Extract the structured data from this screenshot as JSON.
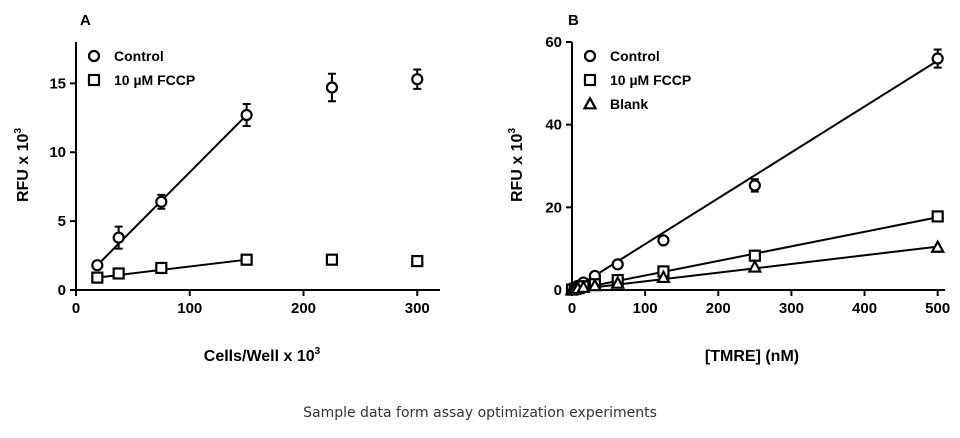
{
  "caption": "Sample data form assay optimization experiments",
  "chart_data": [
    {
      "panel": "A",
      "type": "scatter",
      "xlabel": "Cells/Well x 10",
      "xlabel_sup": "3",
      "ylabel": "RFU x 10",
      "ylabel_sup": "3",
      "xlim": [
        0,
        320
      ],
      "ylim": [
        0,
        18
      ],
      "xticks": [
        0,
        100,
        200,
        300
      ],
      "yticks": [
        0,
        5,
        10,
        15
      ],
      "legend_position": "top-left",
      "series": [
        {
          "name": "Control",
          "marker": "circle",
          "x": [
            18.75,
            37.5,
            75,
            150,
            225,
            300
          ],
          "y": [
            1.8,
            3.8,
            6.4,
            12.7,
            14.7,
            15.3
          ],
          "err": [
            0.2,
            0.8,
            0.5,
            0.8,
            1.0,
            0.7
          ],
          "fit": [
            [
              18.75,
              1.8
            ],
            [
              150,
              12.7
            ]
          ]
        },
        {
          "name": "10 µM FCCP",
          "marker": "square",
          "x": [
            18.75,
            37.5,
            75,
            150,
            225,
            300
          ],
          "y": [
            0.9,
            1.2,
            1.6,
            2.2,
            2.2,
            2.1
          ],
          "err": [
            0.1,
            0.1,
            0.1,
            0.1,
            0.1,
            0.1
          ],
          "fit": [
            [
              18.75,
              0.9
            ],
            [
              150,
              2.2
            ]
          ]
        }
      ]
    },
    {
      "panel": "B",
      "type": "scatter",
      "xlabel": "[TMRE] (nM)",
      "xlabel_sup": "",
      "ylabel": "RFU x 10",
      "ylabel_sup": "3",
      "xlim": [
        0,
        510
      ],
      "ylim": [
        0,
        60
      ],
      "xticks": [
        0,
        100,
        200,
        300,
        400,
        500
      ],
      "yticks": [
        0,
        20,
        40,
        60
      ],
      "legend_position": "top-left",
      "series": [
        {
          "name": "Control",
          "marker": "circle",
          "x": [
            0,
            3.9,
            7.8,
            15.6,
            31.25,
            62.5,
            125,
            250,
            500
          ],
          "y": [
            0.3,
            0.6,
            1.0,
            1.8,
            3.4,
            6.2,
            12.0,
            25.3,
            56.0
          ],
          "err": [
            0,
            0,
            0,
            0,
            0,
            0.3,
            0.6,
            1.5,
            2.2
          ],
          "fit": [
            [
              0,
              0
            ],
            [
              500,
              55.5
            ]
          ]
        },
        {
          "name": "10 µM FCCP",
          "marker": "square",
          "x": [
            0,
            3.9,
            7.8,
            15.6,
            31.25,
            62.5,
            125,
            250,
            500
          ],
          "y": [
            0.1,
            0.3,
            0.5,
            0.9,
            1.4,
            2.4,
            4.5,
            8.3,
            17.8
          ],
          "err": [
            0,
            0,
            0,
            0,
            0,
            0,
            0,
            0.4,
            0.5
          ],
          "fit": [
            [
              0,
              0
            ],
            [
              500,
              17.6
            ]
          ]
        },
        {
          "name": "Blank",
          "marker": "triangle",
          "x": [
            0,
            3.9,
            7.8,
            15.6,
            31.25,
            62.5,
            125,
            250,
            500
          ],
          "y": [
            0.0,
            0.2,
            0.3,
            0.6,
            1.0,
            1.6,
            3.0,
            5.5,
            10.3
          ],
          "err": [
            0,
            0,
            0,
            0,
            0,
            0,
            0,
            0,
            0
          ],
          "fit": [
            [
              0,
              0
            ],
            [
              500,
              10.5
            ]
          ]
        }
      ]
    }
  ]
}
